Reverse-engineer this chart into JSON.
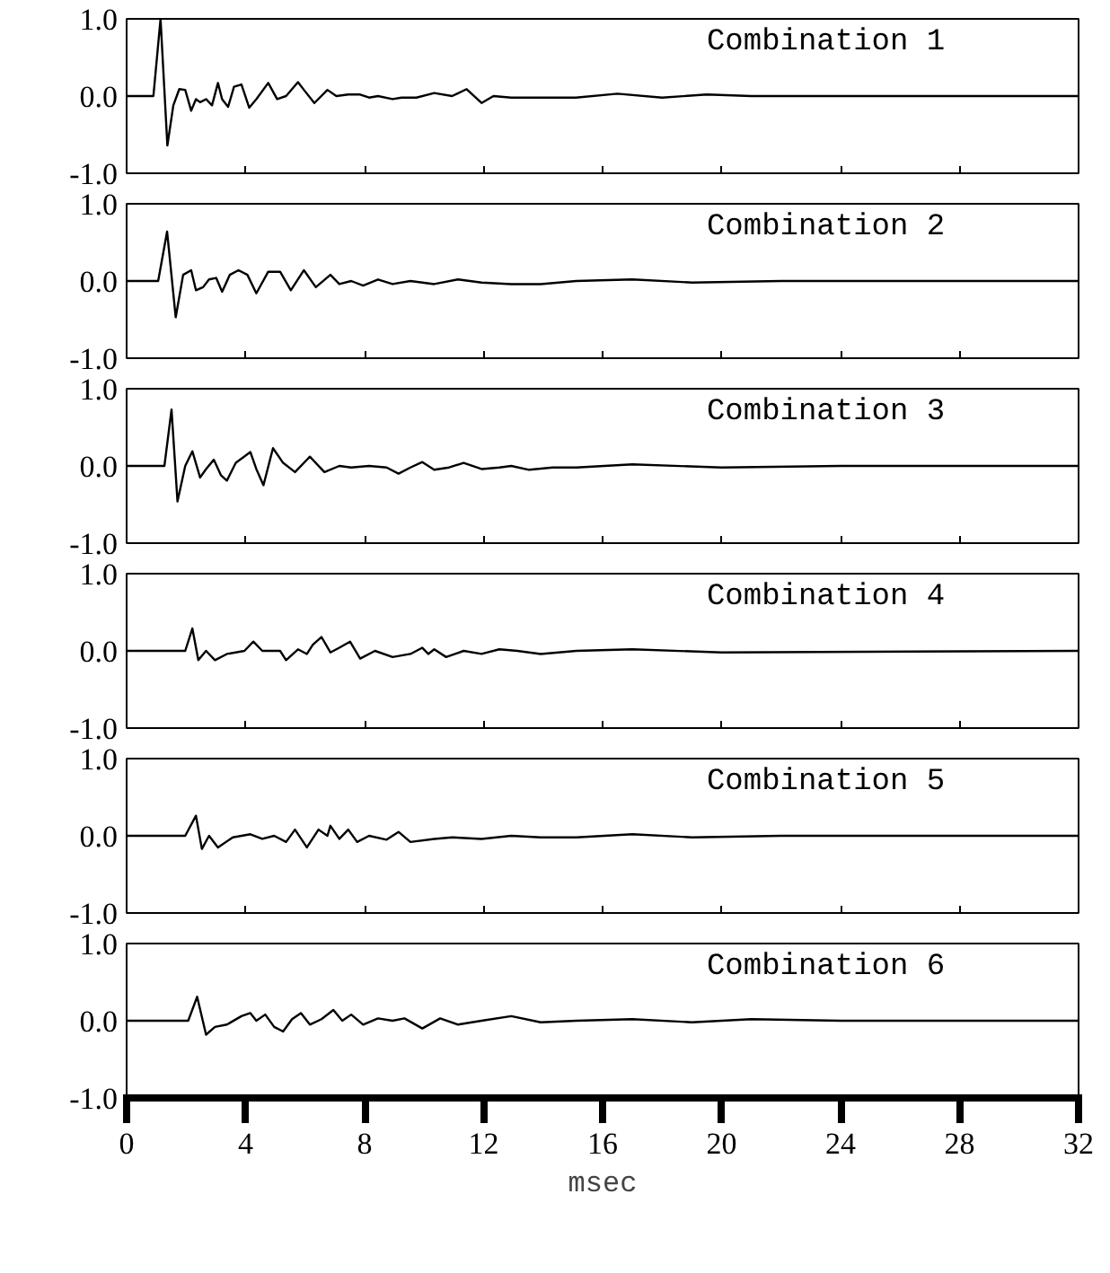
{
  "chart_data": [
    {
      "type": "line",
      "title": "Combination 1",
      "xlim": [
        0,
        32
      ],
      "ylim": [
        -1,
        1
      ],
      "xticks": [
        0,
        4,
        8,
        12,
        16,
        20,
        24,
        28,
        32
      ],
      "yticks": [
        {
          "value": 1,
          "label": "1.0"
        },
        {
          "value": 0,
          "label": "0.0"
        },
        {
          "value": -1,
          "label": "-1.0"
        }
      ],
      "tick_labels": "y",
      "grid": false,
      "series": [
        {
          "color": "#000000",
          "x": [
            0,
            0.9,
            1.14,
            1.37,
            1.57,
            1.77,
            1.97,
            2.17,
            2.33,
            2.47,
            2.67,
            2.87,
            3.07,
            3.21,
            3.41,
            3.61,
            3.86,
            4.12,
            4.36,
            4.76,
            5.06,
            5.36,
            5.76,
            5.96,
            6.31,
            6.75,
            7.05,
            7.45,
            7.85,
            8.15,
            8.45,
            8.94,
            9.24,
            9.74,
            10.34,
            10.94,
            11.43,
            11.93,
            12.33,
            12.93,
            13.92,
            15.1,
            16.5,
            18,
            19.5,
            21,
            32
          ],
          "values": [
            0,
            0,
            1.0,
            -0.64,
            -0.12,
            0.09,
            0.08,
            -0.19,
            -0.04,
            -0.08,
            -0.04,
            -0.12,
            0.17,
            -0.04,
            -0.14,
            0.12,
            0.15,
            -0.15,
            -0.04,
            0.17,
            -0.04,
            0,
            0.18,
            0.08,
            -0.09,
            0.08,
            0,
            0.02,
            0.02,
            -0.02,
            0,
            -0.04,
            -0.02,
            -0.02,
            0.04,
            0,
            0.09,
            -0.09,
            0,
            -0.02,
            -0.02,
            -0.02,
            0.03,
            -0.02,
            0.02,
            0,
            0
          ]
        }
      ]
    },
    {
      "type": "line",
      "title": "Combination 2",
      "xlim": [
        0,
        32
      ],
      "ylim": [
        -1,
        1
      ],
      "xticks": [
        0,
        4,
        8,
        12,
        16,
        20,
        24,
        28,
        32
      ],
      "yticks": [
        {
          "value": 1,
          "label": "1.0"
        },
        {
          "value": 0,
          "label": "0.0"
        },
        {
          "value": -1,
          "label": "-1.0"
        }
      ],
      "tick_labels": "y",
      "grid": false,
      "series": [
        {
          "color": "#000000",
          "x": [
            0,
            1.06,
            1.36,
            1.65,
            1.9,
            2.17,
            2.33,
            2.57,
            2.77,
            3.01,
            3.21,
            3.47,
            3.76,
            4.06,
            4.36,
            4.76,
            5.16,
            5.52,
            5.96,
            6.36,
            6.85,
            7.15,
            7.55,
            7.95,
            8.45,
            8.94,
            9.54,
            10.34,
            11.14,
            11.93,
            12.93,
            13.92,
            15.12,
            17,
            19,
            22,
            32
          ],
          "values": [
            0,
            0,
            0.64,
            -0.47,
            0.08,
            0.14,
            -0.12,
            -0.08,
            0.02,
            0.04,
            -0.14,
            0.08,
            0.14,
            0.08,
            -0.16,
            0.12,
            0.12,
            -0.12,
            0.14,
            -0.08,
            0.08,
            -0.04,
            0,
            -0.06,
            0.02,
            -0.04,
            0,
            -0.04,
            0.02,
            -0.02,
            -0.04,
            -0.04,
            0,
            0.02,
            -0.02,
            0,
            0
          ]
        }
      ]
    },
    {
      "type": "line",
      "title": "Combination 3",
      "xlim": [
        0,
        32
      ],
      "ylim": [
        -1,
        1
      ],
      "xticks": [
        0,
        4,
        8,
        12,
        16,
        20,
        24,
        28,
        32
      ],
      "yticks": [
        {
          "value": 1,
          "label": "1.0"
        },
        {
          "value": 0,
          "label": "0.0"
        },
        {
          "value": -1,
          "label": "-1.0"
        }
      ],
      "tick_labels": "y",
      "grid": false,
      "series": [
        {
          "color": "#000000",
          "x": [
            0,
            1.27,
            1.51,
            1.71,
            1.97,
            2.21,
            2.47,
            2.67,
            2.93,
            3.17,
            3.37,
            3.67,
            4.16,
            4.36,
            4.6,
            4.92,
            5.26,
            5.66,
            6.16,
            6.65,
            7.15,
            7.55,
            8.15,
            8.74,
            9.14,
            9.54,
            9.94,
            10.34,
            10.84,
            11.33,
            11.93,
            12.53,
            12.93,
            13.53,
            14.32,
            15.12,
            17,
            20,
            24,
            32
          ],
          "values": [
            0,
            0,
            0.73,
            -0.46,
            0,
            0.19,
            -0.15,
            -0.04,
            0.08,
            -0.12,
            -0.19,
            0.04,
            0.18,
            -0.04,
            -0.25,
            0.23,
            0.04,
            -0.08,
            0.12,
            -0.08,
            0,
            -0.02,
            0,
            -0.02,
            -0.1,
            -0.02,
            0.05,
            -0.05,
            -0.02,
            0.04,
            -0.04,
            -0.02,
            0,
            -0.05,
            -0.02,
            -0.02,
            0.02,
            -0.02,
            0,
            0
          ]
        }
      ]
    },
    {
      "type": "line",
      "title": "Combination 4",
      "xlim": [
        0,
        32
      ],
      "ylim": [
        -1,
        1
      ],
      "xticks": [
        0,
        4,
        8,
        12,
        16,
        20,
        24,
        28,
        32
      ],
      "yticks": [
        {
          "value": 1,
          "label": "1.0"
        },
        {
          "value": 0,
          "label": "0.0"
        },
        {
          "value": -1,
          "label": "-1.0"
        }
      ],
      "tick_labels": "y",
      "grid": false,
      "series": [
        {
          "color": "#000000",
          "x": [
            0,
            1.97,
            2.21,
            2.41,
            2.67,
            2.97,
            3.37,
            3.96,
            4.26,
            4.56,
            5.16,
            5.36,
            5.76,
            6.06,
            6.26,
            6.55,
            6.85,
            7.15,
            7.51,
            7.85,
            8.35,
            8.94,
            9.54,
            9.94,
            10.14,
            10.34,
            10.74,
            11.33,
            11.93,
            12.53,
            13.13,
            13.92,
            15.12,
            17,
            20,
            32
          ],
          "values": [
            0,
            0,
            0.29,
            -0.12,
            0,
            -0.12,
            -0.04,
            0,
            0.12,
            0,
            0,
            -0.12,
            0.02,
            -0.04,
            0.08,
            0.18,
            -0.02,
            0.04,
            0.12,
            -0.1,
            0,
            -0.08,
            -0.04,
            0.04,
            -0.04,
            0.02,
            -0.08,
            0,
            -0.04,
            0.02,
            0,
            -0.04,
            0,
            0.02,
            -0.02,
            0
          ]
        }
      ]
    },
    {
      "type": "line",
      "title": "Combination 5",
      "xlim": [
        0,
        32
      ],
      "ylim": [
        -1,
        1
      ],
      "xticks": [
        0,
        4,
        8,
        12,
        16,
        20,
        24,
        28,
        32
      ],
      "yticks": [
        {
          "value": 1,
          "label": "1.0"
        },
        {
          "value": 0,
          "label": "0.0"
        },
        {
          "value": -1,
          "label": "-1.0"
        }
      ],
      "tick_labels": "y",
      "grid": false,
      "series": [
        {
          "color": "#000000",
          "x": [
            0,
            1.97,
            2.33,
            2.53,
            2.77,
            3.07,
            3.57,
            4.16,
            4.56,
            4.96,
            5.36,
            5.66,
            6.06,
            6.45,
            6.75,
            6.85,
            7.15,
            7.45,
            7.75,
            8.15,
            8.74,
            9.14,
            9.54,
            10.34,
            10.94,
            11.93,
            12.93,
            13.92,
            15.12,
            17,
            19,
            22,
            32
          ],
          "values": [
            0,
            0,
            0.26,
            -0.17,
            0,
            -0.15,
            -0.02,
            0.02,
            -0.04,
            0,
            -0.08,
            0.08,
            -0.15,
            0.08,
            0,
            0.13,
            -0.04,
            0.08,
            -0.08,
            0,
            -0.05,
            0.05,
            -0.08,
            -0.04,
            -0.02,
            -0.04,
            0,
            -0.02,
            -0.02,
            0.02,
            -0.02,
            0,
            0
          ]
        }
      ]
    },
    {
      "type": "line",
      "title": "Combination 6",
      "xlabel": "msec",
      "xlim": [
        0,
        32
      ],
      "ylim": [
        -1,
        1
      ],
      "xticks": [
        0,
        4,
        8,
        12,
        16,
        20,
        24,
        28,
        32
      ],
      "yticks": [
        {
          "value": 1,
          "label": "1.0"
        },
        {
          "value": 0,
          "label": "0.0"
        },
        {
          "value": -1,
          "label": "-1.0"
        }
      ],
      "grid": false,
      "series": [
        {
          "color": "#000000",
          "x": [
            0,
            2.07,
            2.37,
            2.67,
            2.97,
            3.37,
            3.86,
            4.16,
            4.36,
            4.66,
            4.96,
            5.26,
            5.56,
            5.86,
            6.16,
            6.55,
            6.95,
            7.25,
            7.55,
            7.95,
            8.45,
            8.94,
            9.34,
            9.94,
            10.54,
            11.14,
            11.93,
            12.93,
            13.92,
            15.12,
            17,
            19,
            21,
            24,
            32
          ],
          "values": [
            0,
            0,
            0.31,
            -0.18,
            -0.08,
            -0.05,
            0.06,
            0.1,
            0,
            0.08,
            -0.08,
            -0.14,
            0.02,
            0.1,
            -0.05,
            0.02,
            0.14,
            0,
            0.08,
            -0.05,
            0.03,
            0,
            0.03,
            -0.1,
            0.03,
            -0.05,
            0,
            0.06,
            -0.02,
            0,
            0.02,
            -0.02,
            0.02,
            0,
            0
          ]
        }
      ]
    }
  ]
}
